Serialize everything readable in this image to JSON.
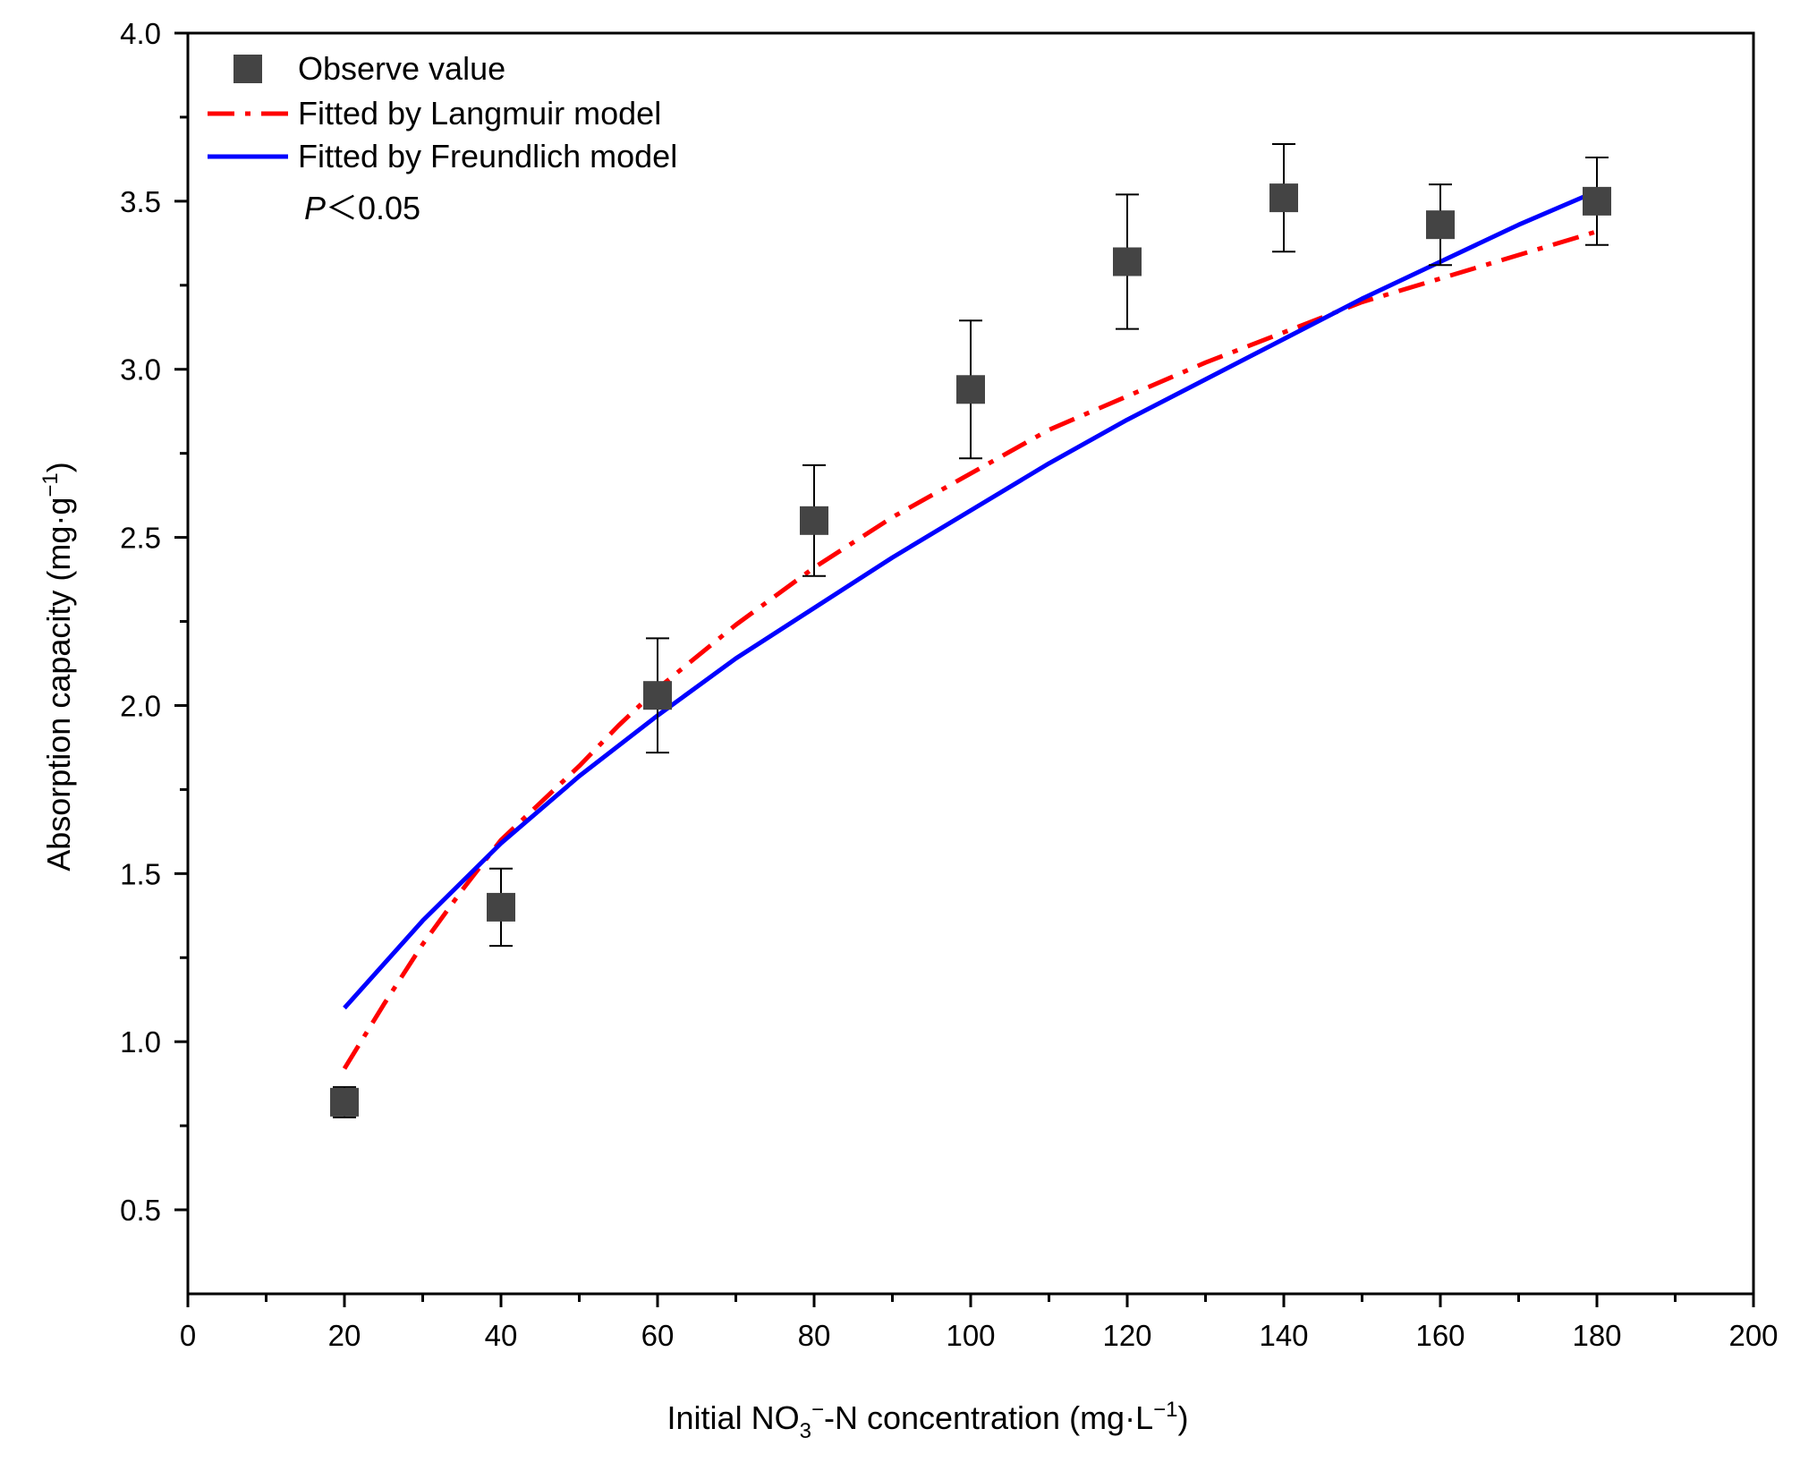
{
  "chart_data": {
    "type": "scatter",
    "title": "",
    "xlabel": {
      "prefix": "Initial NO",
      "sub": "3",
      "sup": "−",
      "middle": "-N concentration (mg·L",
      "sup2": "−1",
      "suffix": ")"
    },
    "ylabel": {
      "prefix": "Absorption capacity (mg·g",
      "sup": "−1",
      "suffix": ")"
    },
    "xlim": [
      0,
      200
    ],
    "ylim": [
      0.25,
      4.0
    ],
    "x_ticks": [
      0,
      20,
      40,
      60,
      80,
      100,
      120,
      140,
      160,
      180,
      200
    ],
    "x_tick_labels": [
      "0",
      "20",
      "40",
      "60",
      "80",
      "100",
      "120",
      "140",
      "160",
      "180",
      "200"
    ],
    "x_minor_step": 10,
    "y_ticks": [
      0.5,
      1.0,
      1.5,
      2.0,
      2.5,
      3.0,
      3.5,
      4.0
    ],
    "y_tick_labels": [
      "0.5",
      "1.0",
      "1.5",
      "2.0",
      "2.5",
      "3.0",
      "3.5",
      "4.0"
    ],
    "y_minor_step": 0.25,
    "grid": false,
    "legend_position": "top-left",
    "legend": [
      "Observe value",
      "Fitted by Langmuir  model",
      "Fitted by Freundlich model"
    ],
    "annotation": {
      "italic": "P",
      "rest": "＜0.05"
    },
    "series": [
      {
        "name": "Observe value",
        "kind": "scatter",
        "color": "#444444",
        "x": [
          20,
          40,
          60,
          80,
          100,
          120,
          140,
          160,
          180
        ],
        "y": [
          0.82,
          1.4,
          2.03,
          2.55,
          2.94,
          3.32,
          3.51,
          3.43,
          3.5
        ],
        "error": [
          0.045,
          0.115,
          0.17,
          0.165,
          0.205,
          0.2,
          0.16,
          0.12,
          0.13
        ]
      },
      {
        "name": "Fitted by Langmuir  model",
        "kind": "line",
        "style": "dashdot",
        "color": "#ff0000",
        "x": [
          20,
          25,
          30,
          35,
          40,
          45,
          50,
          55,
          60,
          70,
          80,
          90,
          100,
          110,
          120,
          130,
          140,
          150,
          160,
          170,
          180
        ],
        "y": [
          0.92,
          1.11,
          1.29,
          1.45,
          1.6,
          1.71,
          1.82,
          1.94,
          2.05,
          2.24,
          2.41,
          2.56,
          2.69,
          2.82,
          2.92,
          3.02,
          3.11,
          3.2,
          3.27,
          3.34,
          3.41
        ]
      },
      {
        "name": "Fitted by Freundlich model",
        "kind": "line",
        "style": "solid",
        "color": "#0000ff",
        "x": [
          20,
          30,
          40,
          50,
          60,
          70,
          80,
          90,
          100,
          110,
          120,
          130,
          140,
          150,
          160,
          170,
          180
        ],
        "y": [
          1.1,
          1.36,
          1.59,
          1.79,
          1.97,
          2.14,
          2.29,
          2.44,
          2.58,
          2.72,
          2.85,
          2.97,
          3.09,
          3.21,
          3.32,
          3.43,
          3.53
        ]
      }
    ]
  }
}
